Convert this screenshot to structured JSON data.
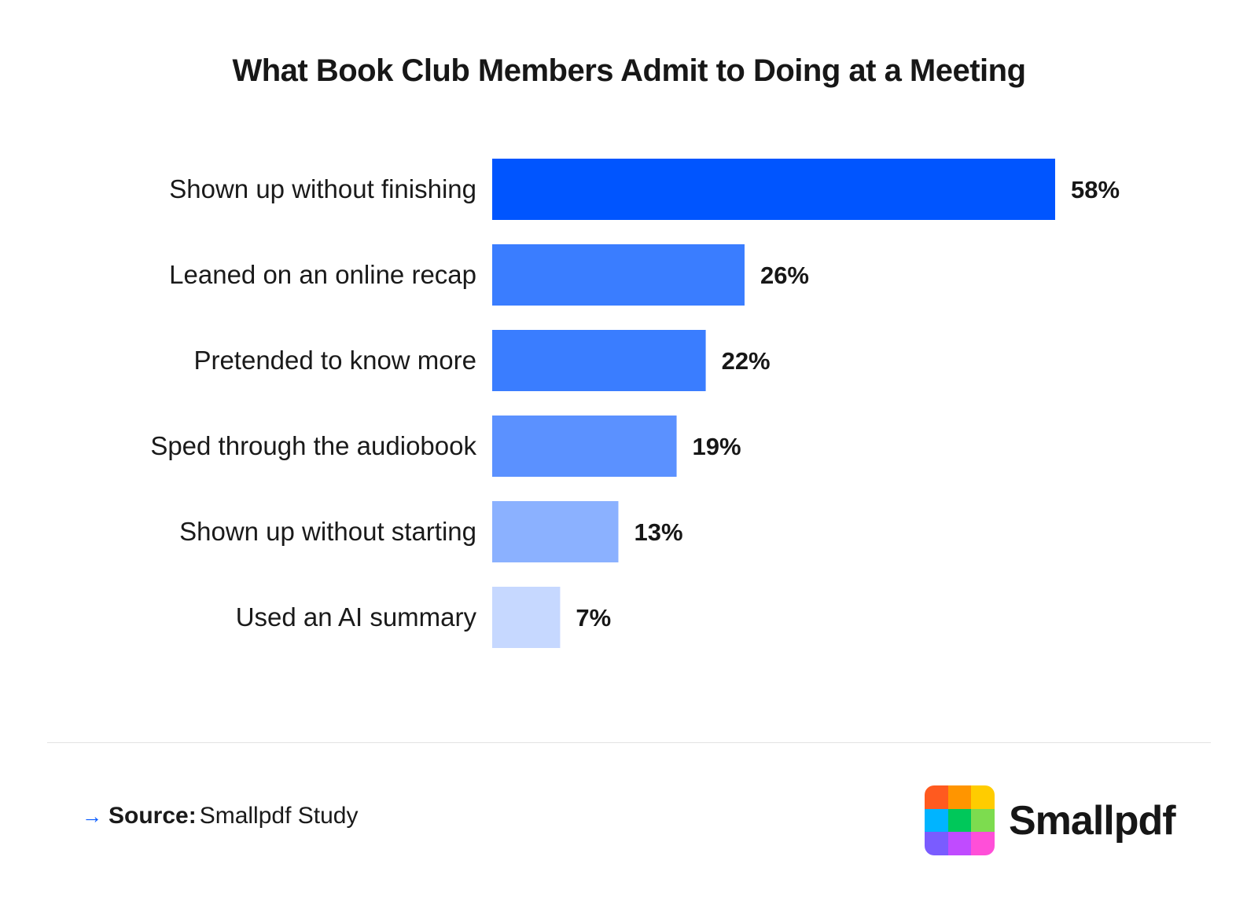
{
  "title": "What Book Club Members Admit to Doing at a Meeting",
  "chart_data": {
    "type": "bar",
    "orientation": "horizontal",
    "title": "What Book Club Members Admit to Doing at a Meeting",
    "categories": [
      "Shown up without finishing",
      "Leaned on an online recap",
      "Pretended to know more",
      "Sped through the audiobook",
      "Shown up without starting",
      "Used an AI summary"
    ],
    "values": [
      58,
      26,
      22,
      19,
      13,
      7
    ],
    "value_labels": [
      "58%",
      "26%",
      "22%",
      "19%",
      "13%",
      "7%"
    ],
    "unit": "%",
    "bar_colors": [
      "#0055ff",
      "#3a7dff",
      "#3a7dff",
      "#5b91ff",
      "#8bb1ff",
      "#c6d8ff"
    ],
    "xlim": [
      0,
      58
    ],
    "grid": false,
    "legend": "none"
  },
  "footer": {
    "source_key": "Source:",
    "source_value": "Smallpdf Study"
  },
  "brand": {
    "name": "Smallpdf",
    "logo_colors": [
      "#ff5a1f",
      "#ff9500",
      "#ffcc00",
      "#00b4ff",
      "#00c85a",
      "#7ddc4f",
      "#7a5cff",
      "#c04bff",
      "#ff4fd8"
    ]
  }
}
